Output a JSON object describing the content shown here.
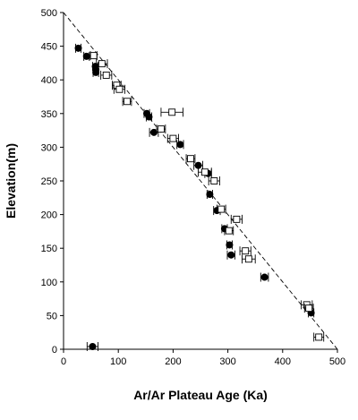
{
  "chart_data": {
    "type": "scatter",
    "xlabel": "Ar/Ar Plateau Age (Ka)",
    "ylabel": "Elevation(m)",
    "xlim": [
      0,
      500
    ],
    "ylim": [
      0,
      500
    ],
    "xticks": [
      0,
      100,
      200,
      300,
      400,
      500
    ],
    "yticks": [
      0,
      50,
      100,
      150,
      200,
      250,
      300,
      350,
      400,
      450,
      500
    ],
    "grid": false,
    "legend": "none",
    "trend_line": {
      "style": "dashed",
      "x": [
        0,
        500
      ],
      "y": [
        500,
        0
      ]
    },
    "series": [
      {
        "marker": "filled-circle",
        "points": [
          {
            "x": 27,
            "y": 447,
            "xerr": 5
          },
          {
            "x": 42,
            "y": 435,
            "xerr": 5
          },
          {
            "x": 58,
            "y": 420,
            "xerr": 5
          },
          {
            "x": 59,
            "y": 415,
            "xerr": 5
          },
          {
            "x": 59,
            "y": 411,
            "xerr": 5
          },
          {
            "x": 152,
            "y": 350,
            "xerr": 5
          },
          {
            "x": 156,
            "y": 345,
            "xerr": 5
          },
          {
            "x": 165,
            "y": 322,
            "xerr": 8
          },
          {
            "x": 213,
            "y": 304,
            "xerr": 6
          },
          {
            "x": 246,
            "y": 273,
            "xerr": 8
          },
          {
            "x": 264,
            "y": 261,
            "xerr": 6
          },
          {
            "x": 267,
            "y": 230,
            "xerr": 5
          },
          {
            "x": 280,
            "y": 206,
            "xerr": 6
          },
          {
            "x": 294,
            "y": 179,
            "xerr": 5
          },
          {
            "x": 303,
            "y": 155,
            "xerr": 5
          },
          {
            "x": 306,
            "y": 140,
            "xerr": 7
          },
          {
            "x": 367,
            "y": 107,
            "xerr": 7
          },
          {
            "x": 452,
            "y": 54,
            "xerr": 5
          },
          {
            "x": 53,
            "y": 4,
            "xerr": 10
          }
        ]
      },
      {
        "marker": "open-square",
        "points": [
          {
            "x": 55,
            "y": 436,
            "xerr": 6
          },
          {
            "x": 70,
            "y": 424,
            "xerr": 10
          },
          {
            "x": 78,
            "y": 407,
            "xerr": 10
          },
          {
            "x": 97,
            "y": 392,
            "xerr": 8
          },
          {
            "x": 102,
            "y": 386,
            "xerr": 10
          },
          {
            "x": 116,
            "y": 368,
            "xerr": 8
          },
          {
            "x": 198,
            "y": 352,
            "xerr": 20
          },
          {
            "x": 178,
            "y": 327,
            "xerr": 8
          },
          {
            "x": 200,
            "y": 313,
            "xerr": 10
          },
          {
            "x": 232,
            "y": 283,
            "xerr": 8
          },
          {
            "x": 258,
            "y": 263,
            "xerr": 12
          },
          {
            "x": 275,
            "y": 250,
            "xerr": 10
          },
          {
            "x": 288,
            "y": 208,
            "xerr": 8
          },
          {
            "x": 316,
            "y": 193,
            "xerr": 10
          },
          {
            "x": 302,
            "y": 176,
            "xerr": 8
          },
          {
            "x": 332,
            "y": 146,
            "xerr": 10
          },
          {
            "x": 338,
            "y": 134,
            "xerr": 12
          },
          {
            "x": 444,
            "y": 66,
            "xerr": 10
          },
          {
            "x": 448,
            "y": 61,
            "xerr": 8
          },
          {
            "x": 466,
            "y": 18,
            "xerr": 9
          }
        ]
      }
    ]
  }
}
